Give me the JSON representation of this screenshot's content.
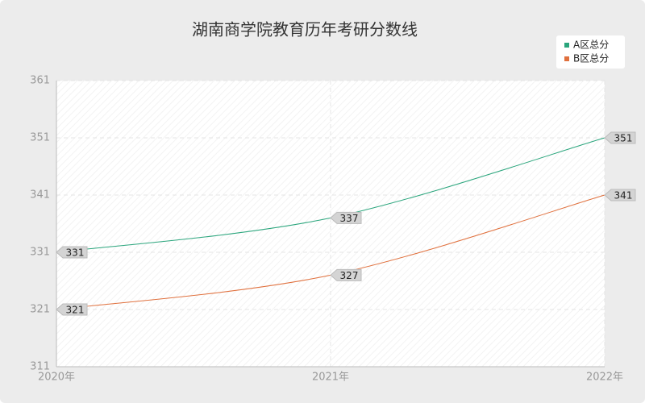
{
  "chart_data": {
    "type": "line",
    "title": "湖南商学院教育历年考研分数线",
    "categories": [
      "2020年",
      "2021年",
      "2022年"
    ],
    "series": [
      {
        "name": "A区总分",
        "color": "#2aa57c",
        "values": [
          331,
          337,
          351
        ]
      },
      {
        "name": "B区总分",
        "color": "#e0703d",
        "values": [
          321,
          327,
          341
        ]
      }
    ],
    "ylim": [
      311,
      361
    ],
    "yticks": [
      311,
      321,
      331,
      341,
      351,
      361
    ],
    "grid": true,
    "legend": "top-right"
  }
}
